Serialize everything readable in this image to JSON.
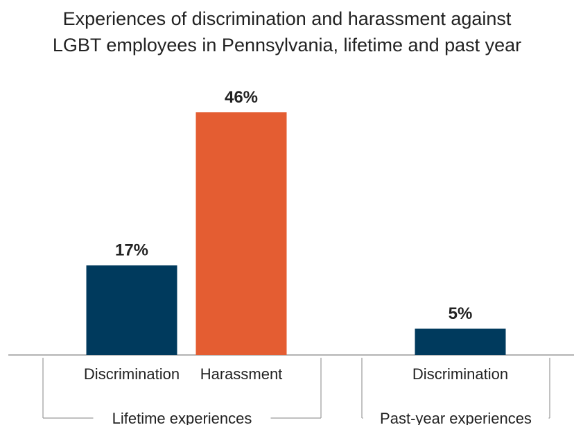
{
  "chart_data": {
    "type": "bar",
    "title_lines": [
      "Experiences of discrimination and harassment against",
      "LGBT employees in Pennsylvania, lifetime and past year"
    ],
    "groups": [
      {
        "label": "Lifetime experiences",
        "bars": [
          {
            "category": "Discrimination",
            "value": 17,
            "label": "17%",
            "color": "#003a5d"
          },
          {
            "category": "Harassment",
            "value": 46,
            "label": "46%",
            "color": "#e45d32"
          }
        ]
      },
      {
        "label": "Past-year experiences",
        "bars": [
          {
            "category": "Discrimination",
            "value": 5,
            "label": "5%",
            "color": "#003a5d"
          }
        ]
      }
    ],
    "ylim": [
      0,
      50
    ],
    "grid": false,
    "legend": "none"
  }
}
